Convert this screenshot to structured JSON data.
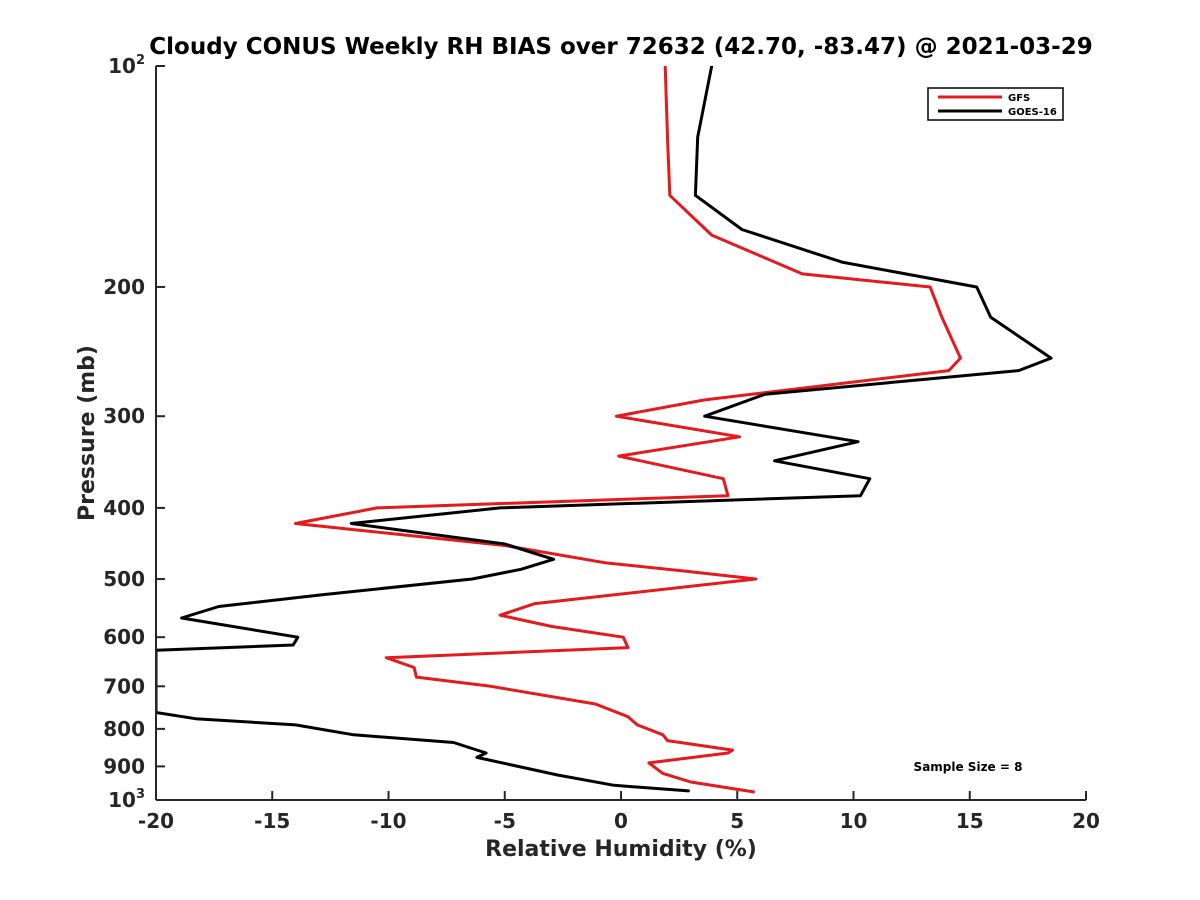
{
  "chart_data": {
    "type": "line",
    "title": "Cloudy CONUS Weekly RH BIAS over 72632 (42.70, -83.47) @ 2021-03-29",
    "xlabel": "Relative Humidity (%)",
    "ylabel": "Pressure (mb)",
    "xlim": [
      -20,
      20
    ],
    "ylim": [
      100,
      1000
    ],
    "y_scale": "log",
    "y_reversed": true,
    "grid": false,
    "legend_position": "top-right",
    "x_ticks": [
      -20,
      -15,
      -10,
      -5,
      0,
      5,
      10,
      15,
      20
    ],
    "x_tick_labels": [
      "-20",
      "-15",
      "-10",
      "-5",
      "0",
      "5",
      "10",
      "15",
      "20"
    ],
    "y_ticks": [
      {
        "value": 100,
        "base": "10",
        "exp": "2"
      },
      {
        "value": 200,
        "label": "200"
      },
      {
        "value": 300,
        "label": "300"
      },
      {
        "value": 400,
        "label": "400"
      },
      {
        "value": 500,
        "label": "500"
      },
      {
        "value": 600,
        "label": "600"
      },
      {
        "value": 700,
        "label": "700"
      },
      {
        "value": 800,
        "label": "800"
      },
      {
        "value": 900,
        "label": "900"
      },
      {
        "value": 1000,
        "base": "10",
        "exp": "3"
      }
    ],
    "annotation": "Sample Size = 8",
    "series": [
      {
        "name": "GFS",
        "color": "#e41a1c",
        "points": [
          {
            "x": 1.9,
            "y": 100
          },
          {
            "x": 2.0,
            "y": 125
          },
          {
            "x": 2.1,
            "y": 150
          },
          {
            "x": 3.9,
            "y": 170
          },
          {
            "x": 7.8,
            "y": 192
          },
          {
            "x": 13.3,
            "y": 200
          },
          {
            "x": 13.8,
            "y": 220
          },
          {
            "x": 14.6,
            "y": 250
          },
          {
            "x": 14.1,
            "y": 260
          },
          {
            "x": 3.6,
            "y": 285
          },
          {
            "x": -0.2,
            "y": 300
          },
          {
            "x": 5.1,
            "y": 320
          },
          {
            "x": -0.1,
            "y": 340
          },
          {
            "x": 4.4,
            "y": 365
          },
          {
            "x": 4.6,
            "y": 385
          },
          {
            "x": -10.5,
            "y": 400
          },
          {
            "x": -14.0,
            "y": 420
          },
          {
            "x": -5.0,
            "y": 450
          },
          {
            "x": -0.7,
            "y": 475
          },
          {
            "x": 2.8,
            "y": 488
          },
          {
            "x": 5.8,
            "y": 500
          },
          {
            "x": -3.7,
            "y": 540
          },
          {
            "x": -5.2,
            "y": 560
          },
          {
            "x": -3.0,
            "y": 580
          },
          {
            "x": 0.1,
            "y": 600
          },
          {
            "x": 0.3,
            "y": 620
          },
          {
            "x": -10.1,
            "y": 640
          },
          {
            "x": -8.9,
            "y": 660
          },
          {
            "x": -8.8,
            "y": 680
          },
          {
            "x": -5.6,
            "y": 700
          },
          {
            "x": -1.1,
            "y": 740
          },
          {
            "x": 0.3,
            "y": 770
          },
          {
            "x": 0.7,
            "y": 790
          },
          {
            "x": 1.8,
            "y": 815
          },
          {
            "x": 2.0,
            "y": 830
          },
          {
            "x": 4.8,
            "y": 855
          },
          {
            "x": 4.6,
            "y": 863
          },
          {
            "x": 1.2,
            "y": 890
          },
          {
            "x": 1.8,
            "y": 920
          },
          {
            "x": 3.0,
            "y": 945
          },
          {
            "x": 5.7,
            "y": 975
          }
        ]
      },
      {
        "name": "GOES-16",
        "color": "#000000",
        "points": [
          {
            "x": 3.9,
            "y": 100
          },
          {
            "x": 3.3,
            "y": 125
          },
          {
            "x": 3.2,
            "y": 150
          },
          {
            "x": 5.2,
            "y": 167
          },
          {
            "x": 9.5,
            "y": 185
          },
          {
            "x": 15.3,
            "y": 200
          },
          {
            "x": 15.9,
            "y": 220
          },
          {
            "x": 18.5,
            "y": 250
          },
          {
            "x": 17.1,
            "y": 260
          },
          {
            "x": 6.2,
            "y": 280
          },
          {
            "x": 3.6,
            "y": 300
          },
          {
            "x": 10.2,
            "y": 325
          },
          {
            "x": 6.6,
            "y": 345
          },
          {
            "x": 10.7,
            "y": 365
          },
          {
            "x": 10.3,
            "y": 385
          },
          {
            "x": -5.2,
            "y": 400
          },
          {
            "x": -11.6,
            "y": 420
          },
          {
            "x": -5.0,
            "y": 448
          },
          {
            "x": -2.9,
            "y": 470
          },
          {
            "x": -4.3,
            "y": 485
          },
          {
            "x": -6.4,
            "y": 500
          },
          {
            "x": -12.8,
            "y": 525
          },
          {
            "x": -17.3,
            "y": 545
          },
          {
            "x": -18.9,
            "y": 565
          },
          {
            "x": -13.9,
            "y": 600
          },
          {
            "x": -14.1,
            "y": 615
          },
          {
            "x": -20.0,
            "y": 625
          },
          {
            "x": -20.0,
            "y": 760
          },
          {
            "x": -18.3,
            "y": 775
          },
          {
            "x": -14.0,
            "y": 790
          },
          {
            "x": -11.5,
            "y": 815
          },
          {
            "x": -7.2,
            "y": 835
          },
          {
            "x": -5.8,
            "y": 863
          },
          {
            "x": -6.2,
            "y": 875
          },
          {
            "x": -2.7,
            "y": 925
          },
          {
            "x": -0.3,
            "y": 955
          },
          {
            "x": 2.9,
            "y": 972
          }
        ]
      }
    ]
  }
}
